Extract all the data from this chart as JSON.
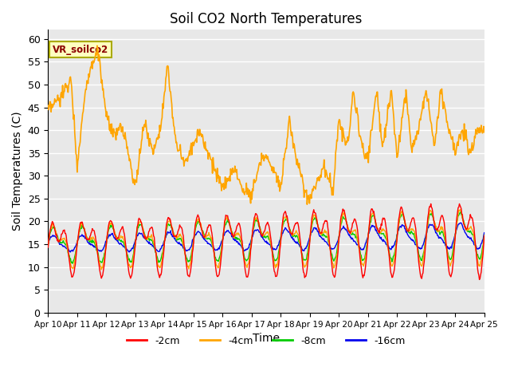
{
  "title": "Soil CO2 North Temperatures",
  "xlabel": "Time",
  "ylabel": "Soil Temperatures (C)",
  "ylim": [
    0,
    62
  ],
  "bg_color": "#e8e8e8",
  "fig_bg": "#ffffff",
  "grid_color": "#ffffff",
  "vr_color": "#FFA500",
  "cm2_color": "#FF0000",
  "cm4_color": "#FFA500",
  "cm8_color": "#00CC00",
  "cm16_color": "#0000EE",
  "legend_labels": [
    "-2cm",
    "-4cm",
    "-8cm",
    "-16cm"
  ],
  "vr_label": "VR_soilco2",
  "xtick_labels": [
    "Apr 10",
    "Apr 11",
    "Apr 12",
    "Apr 13",
    "Apr 14",
    "Apr 15",
    "Apr 16",
    "Apr 17",
    "Apr 18",
    "Apr 19",
    "Apr 20",
    "Apr 21",
    "Apr 22",
    "Apr 23",
    "Apr 24",
    "Apr 25"
  ],
  "ytick_vals": [
    0,
    5,
    10,
    15,
    20,
    25,
    30,
    35,
    40,
    45,
    50,
    55,
    60
  ],
  "n_points": 720
}
